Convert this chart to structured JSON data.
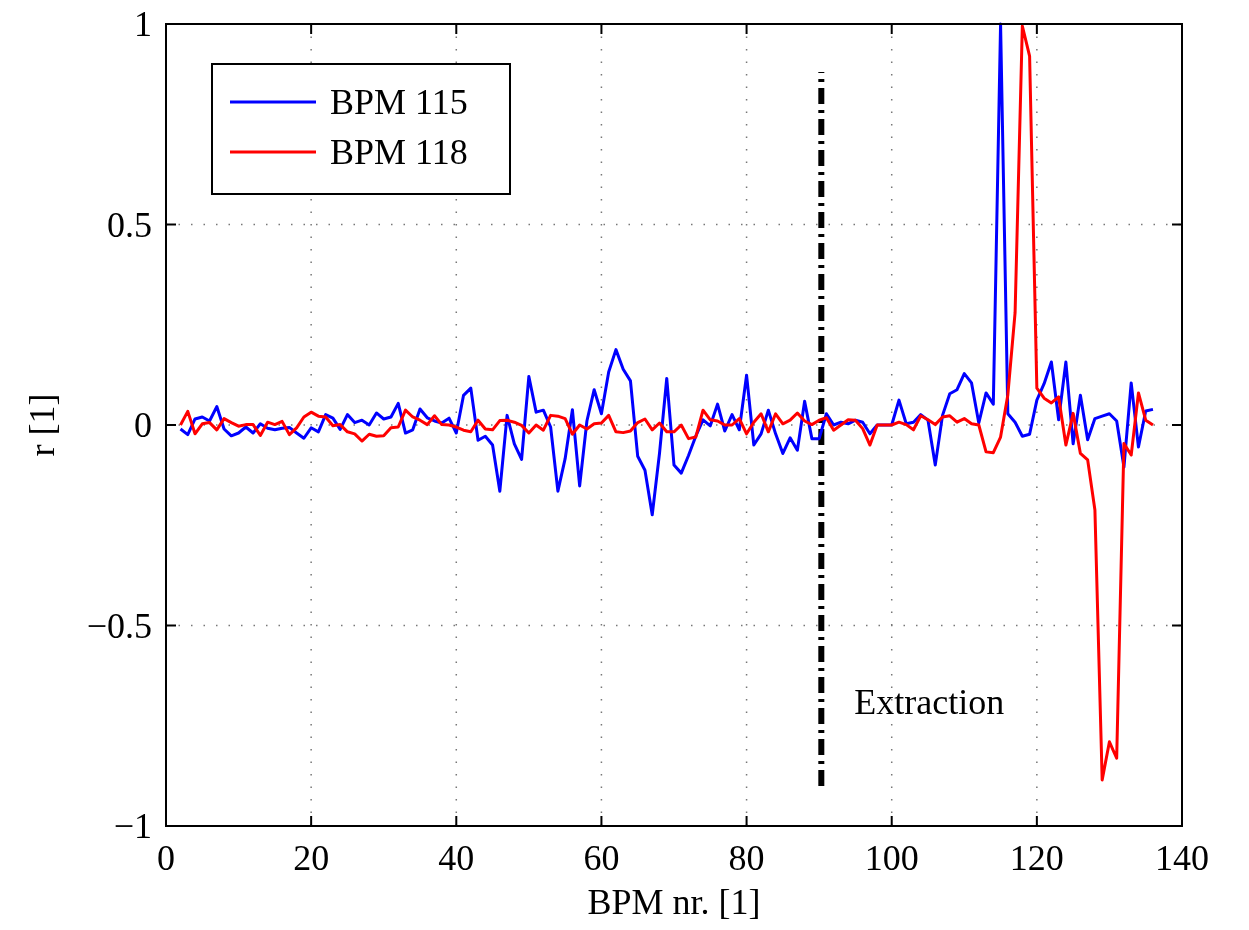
{
  "chart_data": {
    "type": "line",
    "xlabel": "BPM nr. [1]",
    "ylabel": "r [1]",
    "xlim": [
      0,
      140
    ],
    "xticks": [
      0,
      20,
      40,
      60,
      80,
      100,
      120,
      140
    ],
    "ylim": [
      -1,
      1
    ],
    "yticks": [
      {
        "value": -1,
        "label": "−1"
      },
      {
        "value": -0.5,
        "label": "−0.5"
      },
      0,
      0.5,
      1
    ],
    "grid": true,
    "legend": "top left",
    "line_style": "solid",
    "ref_lines": [
      {
        "axis": "x",
        "value": 90.3,
        "label": "Extraction",
        "color": "#000000",
        "line_style": "dashdot"
      }
    ],
    "x": [
      2,
      3,
      4,
      5,
      6,
      7,
      8,
      9,
      10,
      11,
      12,
      13,
      14,
      15,
      16,
      17,
      18,
      19,
      20,
      21,
      22,
      23,
      24,
      25,
      26,
      27,
      28,
      29,
      30,
      31,
      32,
      33,
      34,
      35,
      36,
      37,
      38,
      39,
      40,
      41,
      42,
      43,
      44,
      45,
      46,
      47,
      48,
      49,
      50,
      51,
      52,
      53,
      54,
      55,
      56,
      57,
      58,
      59,
      60,
      61,
      62,
      63,
      64,
      65,
      66,
      67,
      68,
      69,
      70,
      71,
      72,
      73,
      74,
      75,
      76,
      77,
      78,
      79,
      80,
      81,
      82,
      83,
      84,
      85,
      86,
      87,
      88,
      89,
      90,
      91,
      92,
      93,
      94,
      95,
      96,
      97,
      98,
      99,
      100,
      101,
      102,
      103,
      104,
      105,
      106,
      107,
      108,
      109,
      110,
      111,
      112,
      113,
      114,
      115,
      116,
      117,
      118,
      119,
      120,
      121,
      122,
      123,
      124,
      125,
      126,
      127,
      128,
      129,
      130,
      131,
      132,
      133,
      134,
      135,
      136
    ],
    "series": [
      {
        "name": "BPM 115",
        "color": "#0000ff",
        "values": [
          -0.01,
          -0.024,
          0.015,
          0.02,
          0.01,
          0.046,
          -0.01,
          -0.027,
          -0.02,
          -0.005,
          -0.02,
          0.003,
          -0.008,
          -0.012,
          -0.008,
          -0.006,
          -0.02,
          -0.033,
          -0.007,
          -0.017,
          0.026,
          0.017,
          -0.011,
          0.026,
          0.006,
          0.012,
          0,
          0.03,
          0.015,
          0.02,
          0.054,
          -0.02,
          -0.012,
          0.04,
          0.018,
          0.01,
          0.005,
          0.017,
          -0.02,
          0.074,
          0.092,
          -0.038,
          -0.028,
          -0.05,
          -0.165,
          0.024,
          -0.047,
          -0.086,
          0.121,
          0.032,
          0.037,
          -0.005,
          -0.165,
          -0.084,
          0.038,
          -0.152,
          0.01,
          0.088,
          0.028,
          0.132,
          0.188,
          0.139,
          0.11,
          -0.078,
          -0.113,
          -0.224,
          -0.071,
          0.116,
          -0.1,
          -0.12,
          -0.076,
          -0.028,
          0.013,
          -0.002,
          0.052,
          -0.015,
          0.026,
          -0.012,
          0.124,
          -0.05,
          -0.022,
          0.037,
          -0.022,
          -0.071,
          -0.032,
          -0.063,
          0.059,
          -0.034,
          -0.034,
          0.028,
          0,
          0.007,
          0.003,
          0.012,
          0.007,
          -0.022,
          0,
          0,
          0,
          0.062,
          0.003,
          0.007,
          0.026,
          0.012,
          -0.1,
          0.024,
          0.078,
          0.088,
          0.128,
          0.105,
          0.005,
          0.08,
          0.052,
          1.0,
          0.028,
          0.007,
          -0.028,
          -0.023,
          0.062,
          0.103,
          0.157,
          0.013,
          0.157,
          -0.047,
          0.074,
          -0.037,
          0.016,
          0.022,
          0.028,
          0.01,
          -0.105,
          0.105,
          -0.055,
          0.035,
          0.039
        ]
      },
      {
        "name": "BPM 118",
        "color": "#ff0000",
        "values": [
          0,
          0.034,
          -0.022,
          0.003,
          0.006,
          -0.012,
          0.016,
          0.006,
          -0.003,
          0.001,
          0.001,
          -0.026,
          0.007,
          0.001,
          0.009,
          -0.024,
          -0.007,
          0.02,
          0.032,
          0.022,
          0.02,
          -0.002,
          0.001,
          -0.017,
          -0.022,
          -0.04,
          -0.023,
          -0.028,
          -0.027,
          -0.007,
          -0.005,
          0.037,
          0.02,
          0.012,
          0.001,
          0.023,
          0.001,
          0,
          -0.005,
          -0.013,
          -0.017,
          0.012,
          -0.01,
          -0.012,
          0.011,
          0.012,
          0.007,
          -0.001,
          -0.02,
          0,
          -0.013,
          0.024,
          0.022,
          0.016,
          -0.023,
          0,
          -0.01,
          0.003,
          0.005,
          0.024,
          -0.017,
          -0.019,
          -0.015,
          0.006,
          0.015,
          -0.012,
          0.005,
          -0.017,
          -0.017,
          0,
          -0.034,
          -0.03,
          0.037,
          0.013,
          0.01,
          0,
          0,
          0.016,
          -0.022,
          0.007,
          0.028,
          -0.017,
          0.028,
          0.003,
          0.012,
          0.03,
          0.01,
          0.001,
          0.012,
          0.018,
          -0.013,
          0,
          0.013,
          0.012,
          -0.009,
          -0.05,
          0,
          0,
          0,
          0.007,
          0.001,
          -0.012,
          0.023,
          0.013,
          0.001,
          0.02,
          0.023,
          0.007,
          0.016,
          0.003,
          0,
          -0.067,
          -0.069,
          -0.03,
          0.075,
          0.28,
          0.995,
          0.92,
          0.092,
          0.067,
          0.055,
          0.07,
          -0.05,
          0.029,
          -0.071,
          -0.087,
          -0.212,
          -0.885,
          -0.79,
          -0.831,
          -0.046,
          -0.075,
          0.08,
          0.012,
          0
        ]
      }
    ]
  }
}
